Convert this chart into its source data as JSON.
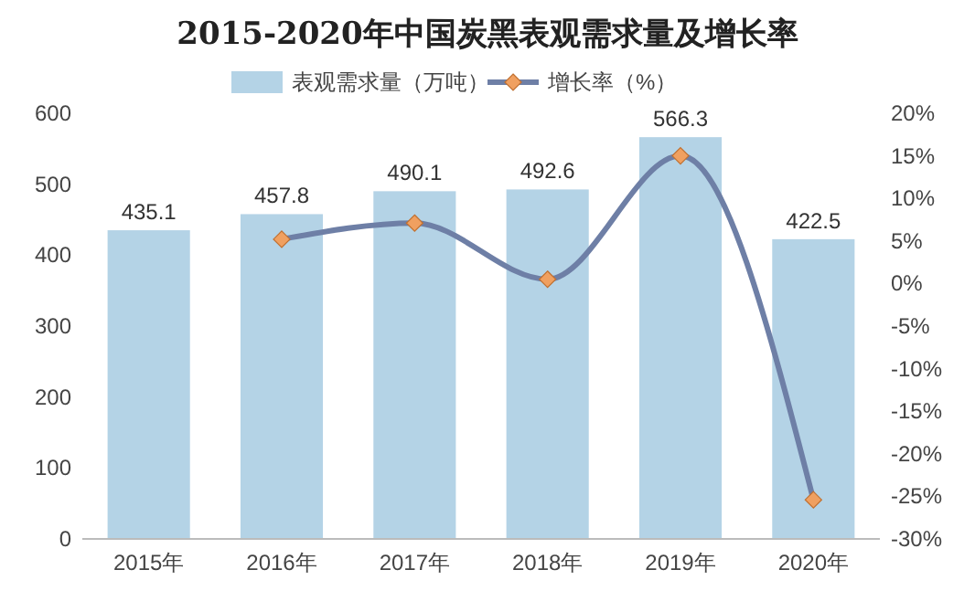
{
  "chart_data": {
    "type": "bar",
    "title": "2015-2020年中国炭黑表观需求量及增长率",
    "categories": [
      "2015年",
      "2016年",
      "2017年",
      "2018年",
      "2019年",
      "2020年"
    ],
    "series": [
      {
        "name": "表观需求量（万吨）",
        "color": "#b4d3e6",
        "values": [
          435.1,
          457.8,
          490.1,
          492.6,
          566.3,
          422.5
        ],
        "data_labels": true
      },
      {
        "name": "增长率（%）",
        "type": "line",
        "axis": "y2",
        "color": "#6e7fa6",
        "values": [
          null,
          5.2,
          7.1,
          0.5,
          15.0,
          -25.4
        ],
        "colors": [
          null,
          "#f0a060",
          "#f0a060",
          "#f0a060",
          "#f0a060",
          "#f0a060"
        ]
      }
    ],
    "ylim": [
      0,
      600
    ],
    "yticks": [
      0,
      100,
      200,
      300,
      400,
      500,
      600
    ],
    "y2lim": [
      -30,
      20
    ],
    "y2ticks": [
      {
        "value": -30,
        "label": "-30%"
      },
      {
        "value": -25,
        "label": "-25%"
      },
      {
        "value": -20,
        "label": "-20%"
      },
      {
        "value": -15,
        "label": "-15%"
      },
      {
        "value": -10,
        "label": "-10%"
      },
      {
        "value": -5,
        "label": "-5%"
      },
      {
        "value": 0,
        "label": "0%"
      },
      {
        "value": 5,
        "label": "5%"
      },
      {
        "value": 10,
        "label": "10%"
      },
      {
        "value": 15,
        "label": "15%"
      },
      {
        "value": 20,
        "label": "20%"
      }
    ],
    "marker": "diamond",
    "legend": "top",
    "grid": false
  }
}
